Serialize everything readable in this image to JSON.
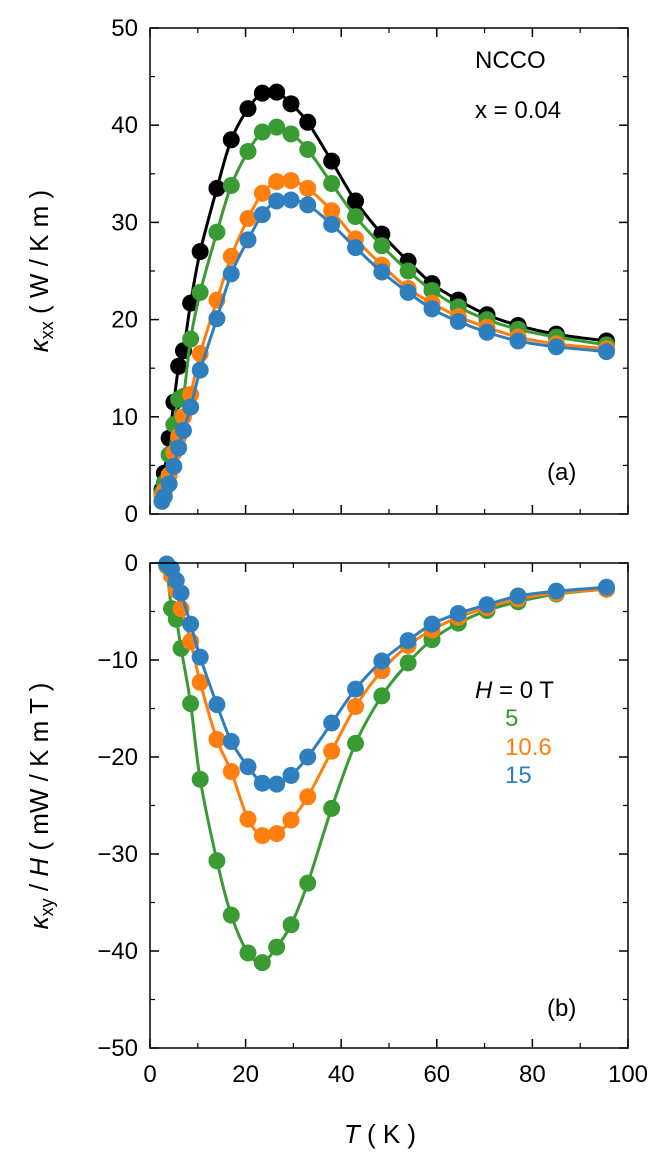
{
  "chart_data": [
    {
      "panel": "(a)",
      "type": "line",
      "title": "",
      "annotations": [
        "NCCO",
        "x = 0.04",
        "(a)"
      ],
      "ylabel": {
        "symbol": "κ",
        "sub": "xx",
        "rest": " ( W / K m )"
      },
      "xlabel": "",
      "xlim": [
        0,
        100
      ],
      "ylim": [
        0,
        50
      ],
      "yticks": [
        0,
        10,
        20,
        30,
        40,
        50
      ],
      "xticks": [
        0,
        20,
        40,
        60,
        80,
        100
      ],
      "x": [
        2.5,
        3,
        4,
        5,
        6,
        7,
        8.5,
        10.5,
        14,
        17,
        20.5,
        23.5,
        26.5,
        29.5,
        33,
        38,
        43,
        48.5,
        54,
        59,
        64.5,
        70.5,
        77,
        85,
        95.5
      ],
      "series": [
        {
          "name": "0 T",
          "color": "#000000",
          "values": [
            2.5,
            4.2,
            7.8,
            11.5,
            15.2,
            16.8,
            21.7,
            27.0,
            33.5,
            38.5,
            41.7,
            43.3,
            43.4,
            42.2,
            40.3,
            36.3,
            32.2,
            28.8,
            26.0,
            23.7,
            22.0,
            20.5,
            19.4,
            18.5,
            17.8
          ]
        },
        {
          "name": "5",
          "color": "#3a9b35",
          "values": [
            2.2,
            3.2,
            6.1,
            9.2,
            11.8,
            12.1,
            18.0,
            22.8,
            29.0,
            33.8,
            37.3,
            39.3,
            39.8,
            39.1,
            37.5,
            34.0,
            30.6,
            27.6,
            25.0,
            23.0,
            21.3,
            20.0,
            19.0,
            18.2,
            17.4
          ]
        },
        {
          "name": "10.6",
          "color": "#ff7f0e",
          "values": [
            1.8,
            2.4,
            4.0,
            6.3,
            8.0,
            10.0,
            12.3,
            16.5,
            22.0,
            26.5,
            30.4,
            33.0,
            34.2,
            34.3,
            33.5,
            31.2,
            28.3,
            25.6,
            23.2,
            21.7,
            20.3,
            19.2,
            18.2,
            17.5,
            17.0
          ]
        },
        {
          "name": "15",
          "color": "#2f7fbf",
          "values": [
            1.3,
            1.8,
            3.1,
            4.9,
            6.8,
            8.6,
            11.0,
            14.8,
            20.1,
            24.7,
            28.2,
            30.8,
            32.2,
            32.3,
            31.8,
            29.8,
            27.4,
            24.9,
            22.8,
            21.1,
            19.8,
            18.7,
            17.8,
            17.2,
            16.7
          ]
        }
      ]
    },
    {
      "panel": "(b)",
      "type": "line",
      "title": "",
      "annotations": [
        "(b)"
      ],
      "ylabel": {
        "symbol": "κ",
        "sub": "xy",
        "rest": " / H  ( mW / K m T )"
      },
      "xlabel": "T ( K )",
      "xlim": [
        0,
        100
      ],
      "ylim": [
        -50,
        0
      ],
      "yticks": [
        0,
        -10,
        -20,
        -30,
        -40,
        -50
      ],
      "ytick_labels": [
        "0",
        "−10",
        "−20",
        "−30",
        "−40",
        "−50"
      ],
      "xticks": [
        0,
        20,
        40,
        60,
        80,
        100
      ],
      "x": [
        3.5,
        4.5,
        5.5,
        6.5,
        8.5,
        10.5,
        14,
        17,
        20.5,
        23.5,
        26.5,
        29.5,
        33,
        38,
        43,
        48.5,
        54,
        59,
        64.5,
        70.5,
        77,
        85,
        95.5
      ],
      "legend": {
        "title_prefix": "H",
        "title_suffix": " = 0 T",
        "entries": [
          "5",
          "10.6",
          "15"
        ]
      },
      "series": [
        {
          "name": "5",
          "color": "#3a9b35",
          "values": [
            -0.3,
            -4.7,
            -5.8,
            -8.8,
            -14.5,
            -22.3,
            -30.7,
            -36.3,
            -40.2,
            -41.2,
            -39.6,
            -37.3,
            -33.0,
            -25.3,
            -18.6,
            -13.7,
            -10.3,
            -7.9,
            -6.2,
            -4.9,
            -4.0,
            -3.2,
            -2.7
          ]
        },
        {
          "name": "10.6",
          "color": "#ff7f0e",
          "values": [
            -0.2,
            -1.3,
            -2.8,
            -4.7,
            -8.1,
            -12.3,
            -18.2,
            -21.5,
            -26.4,
            -28.1,
            -27.9,
            -26.5,
            -24.1,
            -19.4,
            -14.8,
            -11.1,
            -8.5,
            -6.9,
            -5.6,
            -4.6,
            -3.7,
            -3.1,
            -2.7
          ]
        },
        {
          "name": "15",
          "color": "#2f7fbf",
          "values": [
            -0.1,
            -0.6,
            -1.8,
            -3.1,
            -6.3,
            -9.7,
            -14.6,
            -18.4,
            -21.0,
            -22.7,
            -22.8,
            -21.9,
            -20.0,
            -16.5,
            -13.0,
            -10.1,
            -8.0,
            -6.3,
            -5.2,
            -4.3,
            -3.4,
            -2.9,
            -2.5
          ]
        }
      ]
    }
  ]
}
